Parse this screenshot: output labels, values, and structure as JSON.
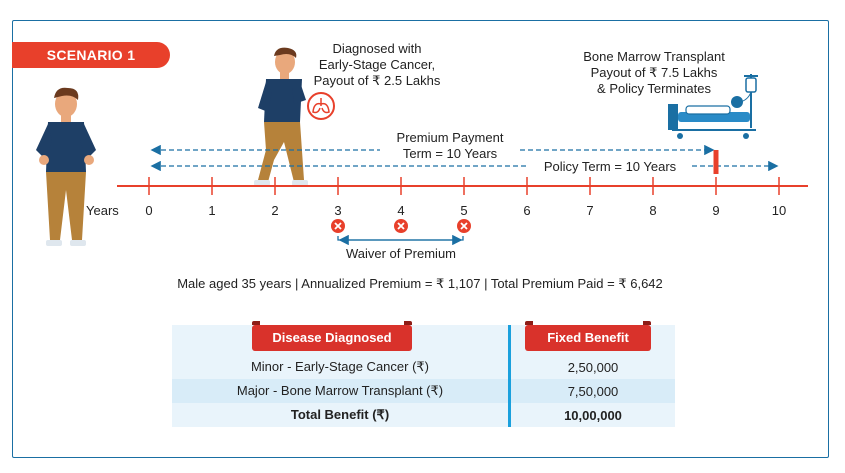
{
  "scenario_label": "SCENARIO 1",
  "events": {
    "diagnosis": {
      "line1": "Diagnosed with",
      "line2": "Early-Stage Cancer,",
      "line3": "Payout of ₹ 2.5 Lakhs"
    },
    "transplant": {
      "line1": "Bone Marrow Transplant",
      "line2": "Payout of ₹ 7.5 Lakhs",
      "line3": "& Policy Terminates"
    }
  },
  "timeline": {
    "axis_label": "Years",
    "ticks": [
      "0",
      "1",
      "2",
      "3",
      "4",
      "5",
      "6",
      "7",
      "8",
      "9",
      "10"
    ],
    "premium_payment_line1": "Premium Payment",
    "premium_payment_line2": "Term = 10 Years",
    "policy_term": "Policy Term = 10 Years",
    "waiver": "Waiver of Premium",
    "waiver_years": [
      3,
      4,
      5
    ],
    "event_year": 9
  },
  "summary": "Male aged 35 years | Annualized Premium = ₹ 1,107 | Total Premium Paid = ₹ 6,642",
  "table": {
    "header_disease": "Disease Diagnosed",
    "header_benefit": "Fixed Benefit",
    "rows": [
      {
        "disease": "Minor - Early-Stage Cancer (₹)",
        "benefit": "2,50,000"
      },
      {
        "disease": "Major - Bone Marrow Transplant (₹)",
        "benefit": "7,50,000"
      },
      {
        "disease": "Total Benefit (₹)",
        "benefit": "10,00,000"
      }
    ]
  },
  "colors": {
    "accent_red": "#e8402b",
    "timeline_blue": "#1a6fa3",
    "frame_blue": "#1a6fa3"
  }
}
